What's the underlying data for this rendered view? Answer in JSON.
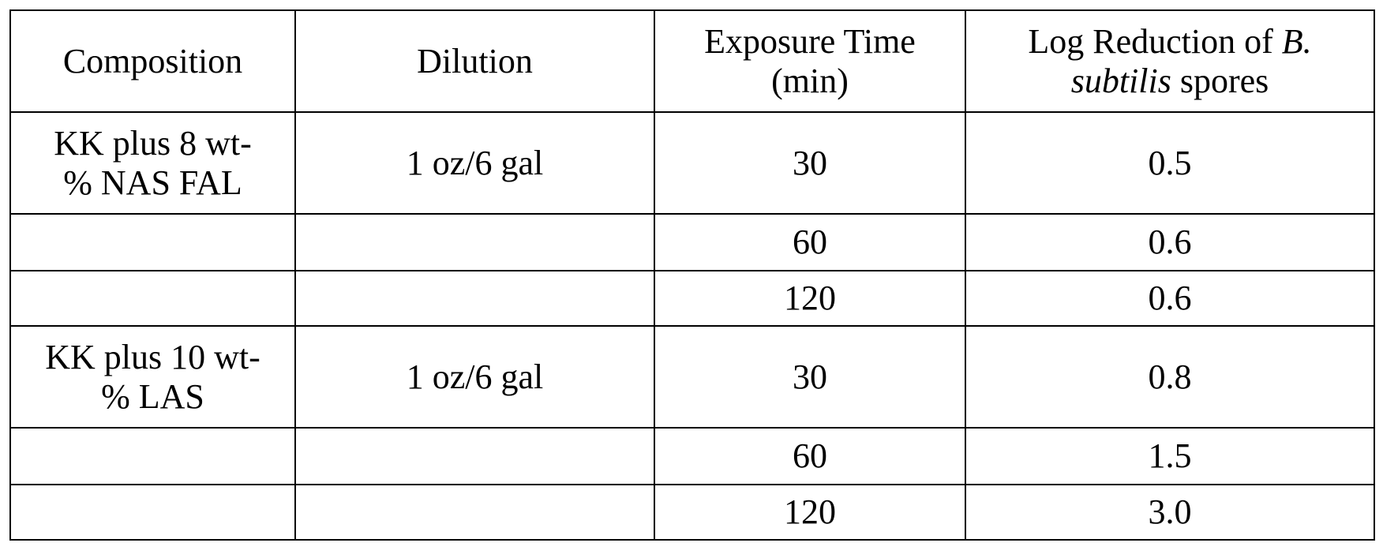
{
  "table": {
    "headers": {
      "composition": "Composition",
      "dilution": "Dilution",
      "exposure_time_line1": "Exposure Time",
      "exposure_time_line2": "(min)",
      "log_reduction_line1": "Log Reduction of",
      "log_reduction_species_genus": "B.",
      "log_reduction_species_name": "subtilis",
      "log_reduction_tail": "spores"
    },
    "groups": [
      {
        "composition_line1": "KK plus 8 wt-",
        "composition_line2": "% NAS FAL",
        "dilution": "1 oz/6 gal",
        "rows": [
          {
            "exposure_time": "30",
            "log_reduction": "0.5"
          },
          {
            "exposure_time": "60",
            "log_reduction": "0.6"
          },
          {
            "exposure_time": "120",
            "log_reduction": "0.6"
          }
        ]
      },
      {
        "composition_line1": "KK plus 10 wt-",
        "composition_line2": "% LAS",
        "dilution": "1 oz/6 gal",
        "rows": [
          {
            "exposure_time": "30",
            "log_reduction": "0.8"
          },
          {
            "exposure_time": "60",
            "log_reduction": "1.5"
          },
          {
            "exposure_time": "120",
            "log_reduction": "3.0"
          }
        ]
      }
    ]
  }
}
